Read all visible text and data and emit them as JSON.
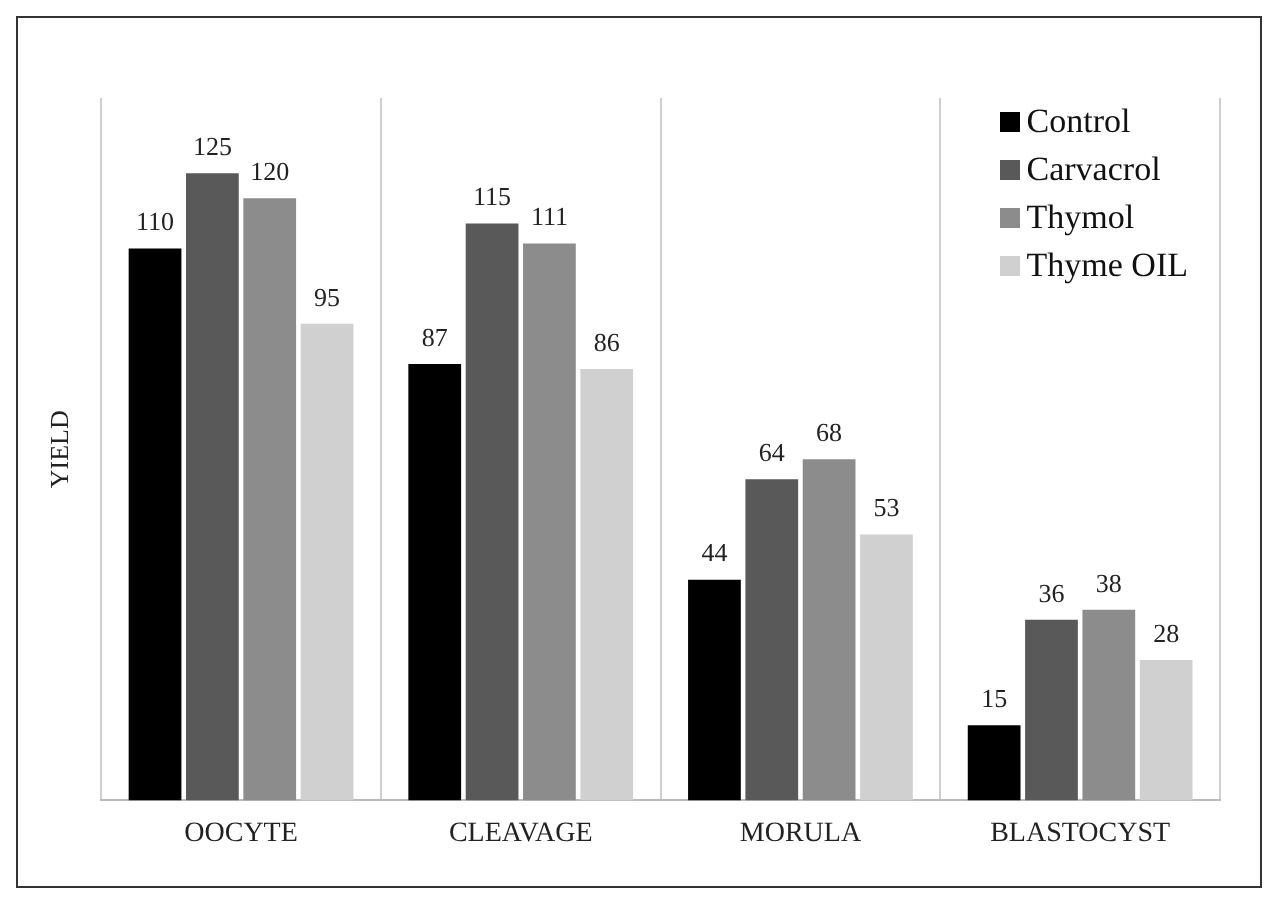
{
  "chart_data": {
    "type": "bar",
    "ylabel": "YIELD",
    "categories": [
      "OOCYTE",
      "CLEAVAGE",
      "MORULA",
      "BLASTOCYST"
    ],
    "series": [
      {
        "name": "Control",
        "color": "#000000",
        "values": [
          110,
          87,
          44,
          15
        ]
      },
      {
        "name": "Carvacrol",
        "color": "#595959",
        "values": [
          125,
          115,
          64,
          36
        ]
      },
      {
        "name": "Thymol",
        "color": "#8c8c8c",
        "values": [
          120,
          111,
          68,
          38
        ]
      },
      {
        "name": "Thyme OIL",
        "color": "#d0d0d0",
        "values": [
          95,
          86,
          53,
          28
        ]
      }
    ],
    "relative": false,
    "data_labels": true,
    "grid": "x",
    "legend": "top right"
  }
}
